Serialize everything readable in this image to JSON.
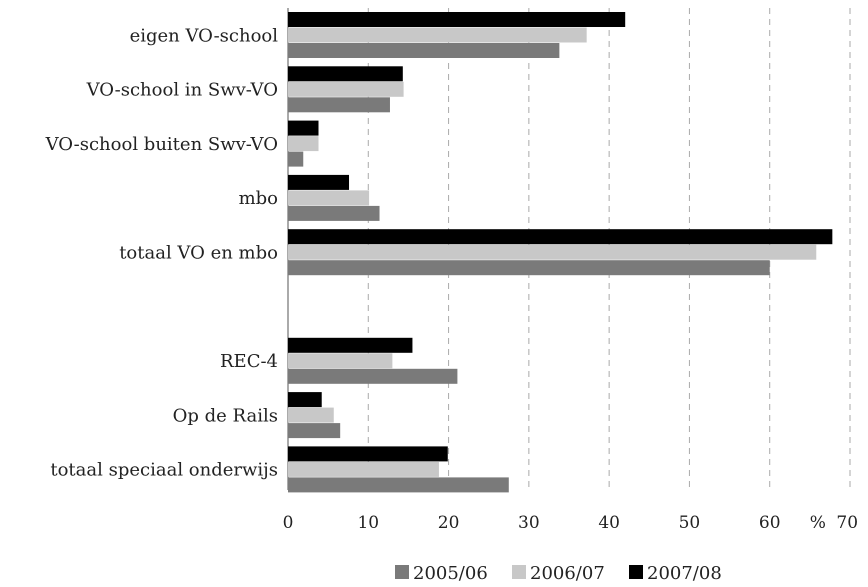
{
  "chart_data": {
    "type": "bar",
    "orientation": "horizontal",
    "categories": [
      "eigen VO-school",
      "VO-school in Swv-VO",
      "VO-school buiten Swv-VO",
      "mbo",
      "totaal VO en mbo",
      "",
      "REC-4",
      "Op de Rails",
      "totaal speciaal onderwijs"
    ],
    "series": [
      {
        "name": "2005/06",
        "color": "#7a7a7a",
        "values": [
          33.8,
          12.7,
          1.9,
          11.4,
          60.0,
          null,
          21.1,
          6.5,
          27.5
        ]
      },
      {
        "name": "2006/07",
        "color": "#c8c8c8",
        "values": [
          37.2,
          14.4,
          3.8,
          10.1,
          65.8,
          null,
          13.0,
          5.7,
          18.8
        ]
      },
      {
        "name": "2007/08",
        "color": "#000000",
        "values": [
          42.0,
          14.3,
          3.8,
          7.6,
          67.8,
          null,
          15.5,
          4.2,
          19.9
        ]
      }
    ],
    "x_ticks": [
      "0",
      "10",
      "20",
      "30",
      "40",
      "50",
      "60",
      "70"
    ],
    "x_unit": "%",
    "xlim": [
      0,
      70
    ],
    "grid": true,
    "legend_position": "bottom"
  }
}
